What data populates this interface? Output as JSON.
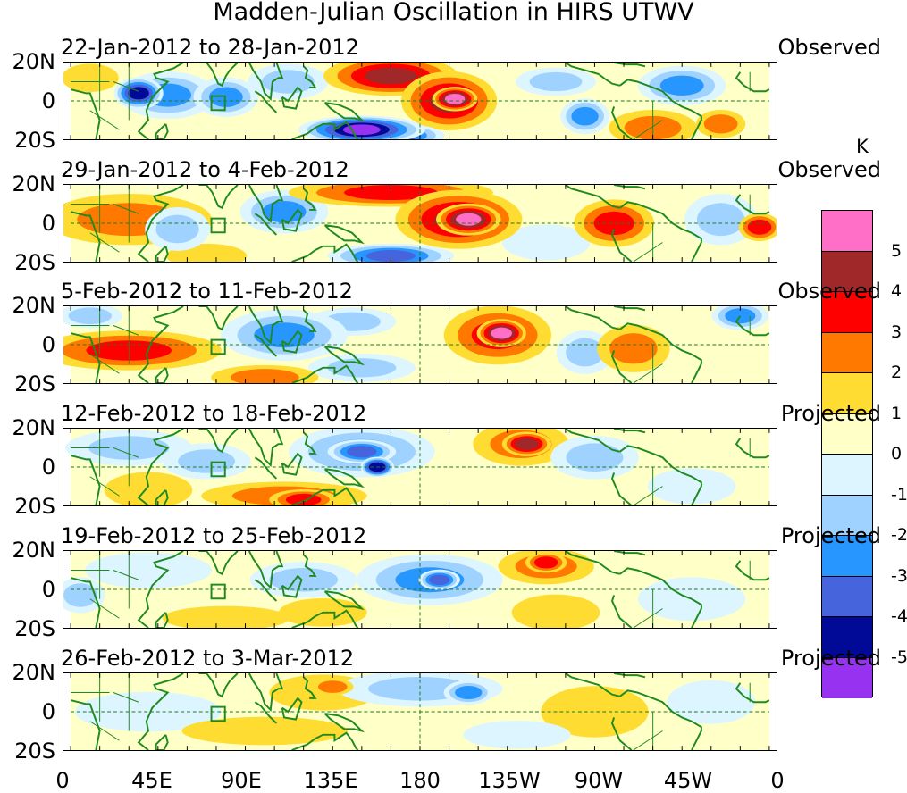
{
  "title": "Madden-Julian Oscillation in HIRS UTWV",
  "colorbar": {
    "unit": "K",
    "colors": [
      "#ff6ec7",
      "#a02828",
      "#ff0000",
      "#ff7800",
      "#ffdc32",
      "#ffffc8",
      "#dcf5ff",
      "#a0d2ff",
      "#2896ff",
      "#4664dc",
      "#000a96",
      "#9632f0"
    ],
    "labels": [
      "5",
      "4",
      "3",
      "2",
      "1",
      "0",
      "-1",
      "-2",
      "-3",
      "-4",
      "-5"
    ]
  },
  "lat_labels": [
    "20N",
    "0",
    "20S"
  ],
  "lon_labels": [
    "0",
    "45E",
    "90E",
    "135E",
    "180",
    "135W",
    "90W",
    "45W",
    "0"
  ],
  "panels": [
    {
      "dates": "22-Jan-2012 to 28-Jan-2012",
      "status": "Observed",
      "blobs": [
        {
          "lon": 50,
          "lat": 3,
          "rlon": 22,
          "rlat": 11,
          "v": -3
        },
        {
          "lon": 35,
          "lat": 4,
          "rlon": 10,
          "rlat": 7,
          "v": -5
        },
        {
          "lon": 80,
          "lat": 2,
          "rlon": 14,
          "rlat": 9,
          "v": -3
        },
        {
          "lon": 112,
          "lat": 10,
          "rlon": 18,
          "rlat": 8,
          "v": -2
        },
        {
          "lon": 165,
          "lat": 13,
          "rlon": 32,
          "rlat": 9,
          "v": 4
        },
        {
          "lon": 195,
          "lat": 0,
          "rlon": 22,
          "rlat": 14,
          "v": 4
        },
        {
          "lon": 198,
          "lat": 1,
          "rlon": 9,
          "rlat": 5,
          "v": 5
        },
        {
          "lon": 150,
          "lat": -15,
          "rlon": 30,
          "rlat": 6,
          "v": -6
        },
        {
          "lon": 165,
          "lat": -18,
          "rlon": 25,
          "rlat": 5,
          "v": -5
        },
        {
          "lon": 265,
          "lat": -8,
          "rlon": 10,
          "rlat": 8,
          "v": -3
        },
        {
          "lon": 315,
          "lat": 8,
          "rlon": 20,
          "rlat": 9,
          "v": -3
        },
        {
          "lon": 300,
          "lat": -14,
          "rlon": 20,
          "rlat": 8,
          "v": 2
        },
        {
          "lon": 335,
          "lat": -12,
          "rlon": 10,
          "rlat": 6,
          "v": 2
        },
        {
          "lon": 250,
          "lat": 10,
          "rlon": 18,
          "rlat": 6,
          "v": -2
        },
        {
          "lon": 10,
          "lat": 12,
          "rlon": 12,
          "rlat": 6,
          "v": 1
        }
      ]
    },
    {
      "dates": "29-Jan-2012 to 4-Feb-2012",
      "status": "Observed",
      "blobs": [
        {
          "lon": 30,
          "lat": 2,
          "rlon": 40,
          "rlat": 12,
          "v": 2
        },
        {
          "lon": 55,
          "lat": -3,
          "rlon": 14,
          "rlat": 10,
          "v": -2
        },
        {
          "lon": 110,
          "lat": 6,
          "rlon": 20,
          "rlat": 10,
          "v": -3
        },
        {
          "lon": 165,
          "lat": 16,
          "rlon": 50,
          "rlat": 6,
          "v": 3
        },
        {
          "lon": 200,
          "lat": 2,
          "rlon": 30,
          "rlat": 14,
          "v": 4
        },
        {
          "lon": 205,
          "lat": 2,
          "rlon": 14,
          "rlat": 7,
          "v": 5
        },
        {
          "lon": 165,
          "lat": -17,
          "rlon": 30,
          "rlat": 5,
          "v": -4
        },
        {
          "lon": 280,
          "lat": 0,
          "rlon": 18,
          "rlat": 11,
          "v": 3
        },
        {
          "lon": 335,
          "lat": 2,
          "rlon": 16,
          "rlat": 12,
          "v": -2
        },
        {
          "lon": 355,
          "lat": -2,
          "rlon": 8,
          "rlat": 6,
          "v": 3
        },
        {
          "lon": 245,
          "lat": -10,
          "rlon": 20,
          "rlat": 8,
          "v": -1
        },
        {
          "lon": 70,
          "lat": -17,
          "rlon": 18,
          "rlat": 5,
          "v": 1
        }
      ]
    },
    {
      "dates": "5-Feb-2012 to 11-Feb-2012",
      "status": "Observed",
      "blobs": [
        {
          "lon": 30,
          "lat": -3,
          "rlon": 45,
          "rlat": 9,
          "v": 3
        },
        {
          "lon": 110,
          "lat": 5,
          "rlon": 30,
          "rlat": 12,
          "v": -3
        },
        {
          "lon": 145,
          "lat": 12,
          "rlon": 20,
          "rlat": 6,
          "v": -2
        },
        {
          "lon": 220,
          "lat": 5,
          "rlon": 25,
          "rlat": 14,
          "v": 3
        },
        {
          "lon": 222,
          "lat": 6,
          "rlon": 10,
          "rlat": 6,
          "v": 5
        },
        {
          "lon": 265,
          "lat": -4,
          "rlon": 12,
          "rlat": 10,
          "v": -2
        },
        {
          "lon": 290,
          "lat": -2,
          "rlon": 16,
          "rlat": 11,
          "v": 2
        },
        {
          "lon": 150,
          "lat": -12,
          "rlon": 25,
          "rlat": 6,
          "v": -2
        },
        {
          "lon": 100,
          "lat": -17,
          "rlon": 25,
          "rlat": 5,
          "v": 2
        },
        {
          "lon": 10,
          "lat": 15,
          "rlon": 14,
          "rlat": 5,
          "v": -2
        },
        {
          "lon": 345,
          "lat": 15,
          "rlon": 12,
          "rlat": 6,
          "v": -3
        }
      ]
    },
    {
      "dates": "12-Feb-2012 to 18-Feb-2012",
      "status": "Projected",
      "blobs": [
        {
          "lon": 30,
          "lat": 10,
          "rlon": 30,
          "rlat": 8,
          "v": -2
        },
        {
          "lon": 70,
          "lat": 3,
          "rlon": 20,
          "rlat": 8,
          "v": -2
        },
        {
          "lon": 150,
          "lat": 8,
          "rlon": 35,
          "rlat": 12,
          "v": -3
        },
        {
          "lon": 150,
          "lat": 8,
          "rlon": 15,
          "rlat": 5,
          "v": -4
        },
        {
          "lon": 158,
          "lat": 0,
          "rlon": 6,
          "rlat": 4,
          "v": -5
        },
        {
          "lon": 232,
          "lat": 12,
          "rlon": 22,
          "rlat": 10,
          "v": 2
        },
        {
          "lon": 235,
          "lat": 12,
          "rlon": 10,
          "rlat": 5,
          "v": 4
        },
        {
          "lon": 270,
          "lat": 5,
          "rlon": 20,
          "rlat": 10,
          "v": -2
        },
        {
          "lon": 110,
          "lat": -15,
          "rlon": 40,
          "rlat": 6,
          "v": 2
        },
        {
          "lon": 120,
          "lat": -17,
          "rlon": 15,
          "rlat": 4,
          "v": 3
        },
        {
          "lon": 40,
          "lat": -12,
          "rlon": 20,
          "rlat": 8,
          "v": 1
        },
        {
          "lon": 320,
          "lat": -10,
          "rlon": 20,
          "rlat": 8,
          "v": -1
        }
      ]
    },
    {
      "dates": "19-Feb-2012 to 25-Feb-2012",
      "status": "Projected",
      "blobs": [
        {
          "lon": 185,
          "lat": 5,
          "rlon": 35,
          "rlat": 12,
          "v": -3
        },
        {
          "lon": 190,
          "lat": 5,
          "rlon": 8,
          "rlat": 4,
          "v": -4
        },
        {
          "lon": 245,
          "lat": 12,
          "rlon": 22,
          "rlat": 8,
          "v": 2
        },
        {
          "lon": 245,
          "lat": 14,
          "rlon": 8,
          "rlat": 4,
          "v": 3
        },
        {
          "lon": 120,
          "lat": 5,
          "rlon": 25,
          "rlat": 8,
          "v": -2
        },
        {
          "lon": 40,
          "lat": 10,
          "rlon": 30,
          "rlat": 8,
          "v": -1
        },
        {
          "lon": 5,
          "lat": -3,
          "rlon": 10,
          "rlat": 8,
          "v": -2
        },
        {
          "lon": 130,
          "lat": -12,
          "rlon": 20,
          "rlat": 6,
          "v": 1
        },
        {
          "lon": 250,
          "lat": -12,
          "rlon": 20,
          "rlat": 8,
          "v": 1
        },
        {
          "lon": 320,
          "lat": -5,
          "rlon": 25,
          "rlat": 10,
          "v": -1
        },
        {
          "lon": 80,
          "lat": -15,
          "rlon": 30,
          "rlat": 5,
          "v": 1
        }
      ]
    },
    {
      "dates": "26-Feb-2012 to 3-Mar-2012",
      "status": "Projected",
      "blobs": [
        {
          "lon": 180,
          "lat": 12,
          "rlon": 40,
          "rlat": 8,
          "v": -2
        },
        {
          "lon": 205,
          "lat": 10,
          "rlon": 10,
          "rlat": 5,
          "v": -3
        },
        {
          "lon": 130,
          "lat": 10,
          "rlon": 25,
          "rlat": 8,
          "v": 1
        },
        {
          "lon": 135,
          "lat": 13,
          "rlon": 8,
          "rlat": 3,
          "v": 2
        },
        {
          "lon": 40,
          "lat": 0,
          "rlon": 35,
          "rlat": 9,
          "v": -1
        },
        {
          "lon": 100,
          "lat": -10,
          "rlon": 40,
          "rlat": 6,
          "v": 1
        },
        {
          "lon": 270,
          "lat": 0,
          "rlon": 25,
          "rlat": 12,
          "v": 1
        },
        {
          "lon": 230,
          "lat": -12,
          "rlon": 25,
          "rlat": 6,
          "v": -1
        },
        {
          "lon": 330,
          "lat": 5,
          "rlon": 20,
          "rlat": 10,
          "v": -1
        }
      ]
    }
  ]
}
